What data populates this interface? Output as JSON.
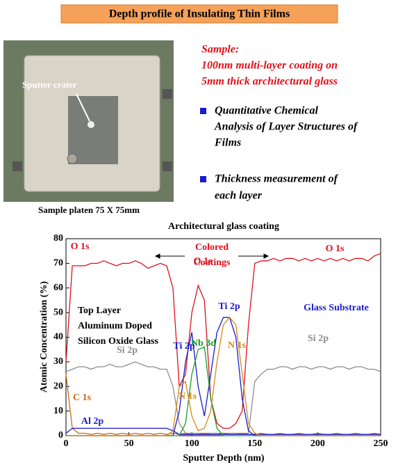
{
  "header": {
    "title": "Depth profile of Insulating Thin Films"
  },
  "photo": {
    "label": "Sputter crater",
    "caption": "Sample platen 75 X 75mm"
  },
  "sample": {
    "lines": [
      "Sample:",
      "100nm multi-layer coating on",
      "5mm thick architectural glass"
    ]
  },
  "bullets": [
    [
      "Quantitative Chemical",
      "Analysis of Layer Structures of",
      "Films"
    ],
    [
      "Thickness measurement of",
      "each layer"
    ]
  ],
  "chart_data": {
    "type": "line",
    "title": "Architectural glass coating",
    "x_label": "Sputter Depth (nm)",
    "y_label": "Atomic Concentration (%)",
    "xlim": [
      0,
      250
    ],
    "xticks": [
      0,
      50,
      100,
      150,
      200,
      250
    ],
    "ylim": [
      0,
      80
    ],
    "yticks": [
      0,
      10,
      20,
      30,
      40,
      50,
      60,
      70,
      80
    ],
    "x": [
      0,
      5,
      10,
      15,
      20,
      25,
      30,
      35,
      40,
      45,
      50,
      55,
      60,
      65,
      70,
      75,
      80,
      85,
      90,
      95,
      100,
      105,
      110,
      115,
      120,
      125,
      130,
      135,
      140,
      145,
      150,
      155,
      160,
      165,
      170,
      175,
      180,
      185,
      190,
      195,
      200,
      205,
      210,
      215,
      220,
      225,
      230,
      235,
      240,
      245,
      250
    ],
    "series": [
      {
        "name": "O 1s",
        "color": "#e0101a",
        "values": [
          30,
          69,
          69,
          69,
          70,
          70,
          71,
          70,
          69,
          70,
          70,
          71,
          70,
          68,
          69,
          70,
          69,
          60,
          20,
          25,
          50,
          61,
          55,
          15,
          5,
          3,
          3,
          5,
          10,
          45,
          70,
          71,
          71,
          72,
          71,
          72,
          72,
          71,
          72,
          71,
          72,
          71,
          72,
          71,
          72,
          71,
          72,
          72,
          71,
          73,
          74
        ]
      },
      {
        "name": "Si 2p",
        "color": "#8c8c8c",
        "values": [
          26,
          27,
          28,
          28,
          27,
          28,
          28,
          29,
          28,
          28,
          29,
          30,
          29,
          28,
          28,
          27,
          27,
          20,
          5,
          1,
          1,
          1,
          1,
          1,
          1,
          1,
          1,
          1,
          1,
          1,
          22,
          25,
          27,
          27,
          28,
          28,
          27,
          28,
          28,
          27,
          28,
          28,
          27,
          28,
          28,
          27,
          28,
          28,
          27,
          27,
          26
        ]
      },
      {
        "name": "C 1s",
        "color": "#c86a14",
        "values": [
          25,
          3,
          1,
          1,
          0.5,
          1,
          0.5,
          1,
          0.5,
          1,
          0.5,
          1,
          0.5,
          1,
          0.5,
          1,
          0.5,
          1,
          0.5,
          1,
          0.5,
          0.5,
          1,
          0.5,
          0.5,
          1,
          0.5,
          0.5,
          1,
          0.5,
          0.5,
          1,
          0.5,
          0.5,
          1,
          0.5,
          0.5,
          1,
          0.5,
          0.5,
          1,
          0.5,
          0.5,
          1,
          0.5,
          0.5,
          1,
          0.5,
          0.5,
          1,
          0.5
        ]
      },
      {
        "name": "Al 2p",
        "color": "#1a1ad0",
        "values": [
          1,
          3,
          3,
          3,
          3,
          3,
          3,
          3,
          3,
          3,
          3,
          3,
          3,
          3,
          3,
          3,
          3,
          2,
          0.5,
          0.5,
          0.5,
          0.5,
          0.5,
          0.5,
          0.5,
          0.5,
          0.5,
          0.5,
          0.5,
          0.5,
          0.5,
          0.5,
          0.5,
          0.5,
          0.5,
          0.5,
          0.5,
          0.5,
          0.5,
          0.5,
          0.5,
          0.5,
          0.5,
          0.5,
          0.5,
          0.5,
          0.5,
          0.5,
          0.5,
          0.5,
          0.5
        ]
      },
      {
        "name": "Ti 2p",
        "color": "#1a1ad0",
        "values": [
          0,
          0,
          0,
          0,
          0,
          0,
          0,
          0,
          0,
          0,
          0,
          0,
          0,
          0,
          0,
          0,
          0,
          0,
          10,
          30,
          42,
          20,
          8,
          25,
          42,
          48,
          48,
          40,
          15,
          2,
          0,
          0,
          0,
          0,
          0,
          0,
          0,
          0,
          0,
          0,
          0,
          0,
          0,
          0,
          0,
          0,
          0,
          0,
          0,
          0,
          0
        ]
      },
      {
        "name": "Nb 3d",
        "color": "#1a9a2a",
        "values": [
          0,
          0,
          0,
          0,
          0,
          0,
          0,
          0,
          0,
          0,
          0,
          0,
          0,
          0,
          0,
          0,
          0,
          0,
          0,
          5,
          25,
          35,
          36,
          15,
          3,
          0,
          0,
          0,
          0,
          0,
          0,
          0,
          0,
          0,
          0,
          0,
          0,
          0,
          0,
          0,
          0,
          0,
          0,
          0,
          0,
          0,
          0,
          0,
          0,
          0,
          0
        ]
      },
      {
        "name": "N 1s",
        "color": "#d58a1a",
        "values": [
          0,
          0,
          0,
          0,
          0,
          0,
          0,
          0,
          0,
          0,
          0,
          0,
          0,
          0,
          0,
          0,
          0,
          2,
          20,
          22,
          8,
          2,
          3,
          10,
          30,
          45,
          48,
          45,
          25,
          5,
          1,
          0,
          0,
          0,
          0,
          0,
          0,
          0,
          0,
          0,
          0,
          0,
          0,
          0,
          0,
          0,
          0,
          0,
          0,
          0,
          0
        ]
      }
    ],
    "annotations": [
      {
        "text": "Top Layer",
        "color": "#000000"
      },
      {
        "text": "Aluminum Doped",
        "color": "#000000"
      },
      {
        "text": "Silicon Oxide Glass",
        "color": "#000000"
      },
      {
        "text": "Glass Substrate",
        "color": "#1a1ad0"
      },
      {
        "text": "Colored",
        "color": "#e0101a"
      },
      {
        "text": "Coatings",
        "color": "#e0101a"
      }
    ]
  }
}
